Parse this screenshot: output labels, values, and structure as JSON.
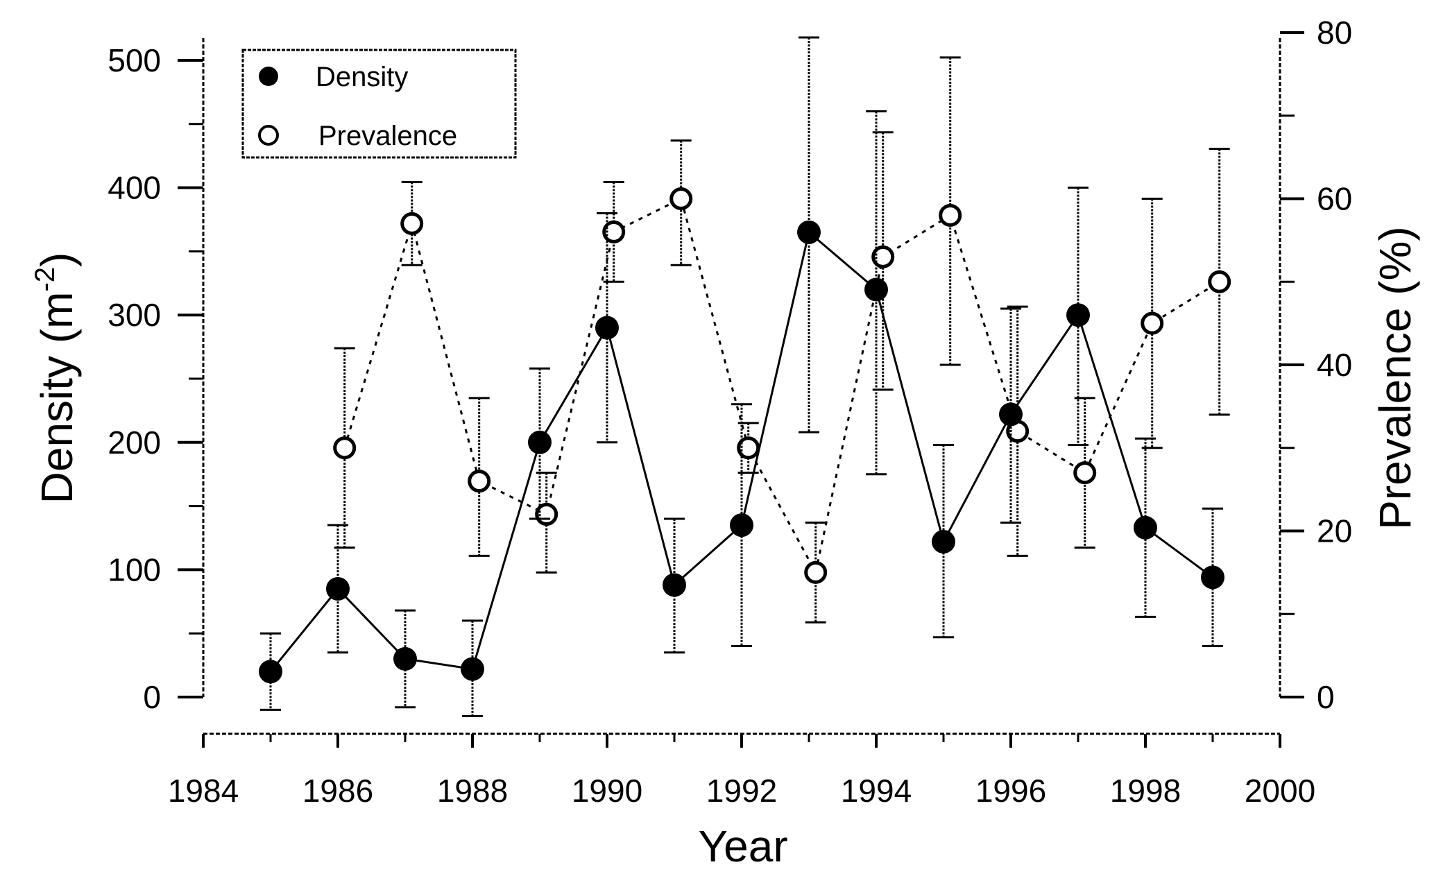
{
  "chart_data": {
    "type": "line",
    "x_axis": {
      "label": "Year",
      "range": [
        1984,
        2000
      ],
      "ticks": [
        1984,
        1986,
        1988,
        1990,
        1992,
        1994,
        1996,
        1998,
        2000
      ],
      "tick_labels": [
        "1984",
        "1986",
        "1988",
        "1990",
        "1992",
        "1994",
        "1996",
        "1998",
        "2000"
      ]
    },
    "y_axis_left": {
      "label_main": "Density (m",
      "label_sup": "-2",
      "label_end": ")",
      "range": [
        0,
        500
      ],
      "ticks": [
        0,
        100,
        200,
        300,
        400,
        500
      ],
      "tick_labels": [
        "0",
        "100",
        "200",
        "300",
        "400",
        "500"
      ]
    },
    "y_axis_right": {
      "label": "Prevalence (%)",
      "range": [
        0,
        80
      ],
      "ticks": [
        0,
        20,
        40,
        60,
        80
      ],
      "tick_labels": [
        "0",
        "20",
        "40",
        "60",
        "80"
      ]
    },
    "legend": {
      "position": "top-left",
      "entries": [
        "Density",
        "Prevalence"
      ]
    },
    "series": [
      {
        "name": "Density",
        "axis": "left",
        "marker": "filled-circle",
        "line": "solid",
        "points": [
          {
            "x": 1985,
            "y": 20,
            "lo": -10,
            "hi": 50
          },
          {
            "x": 1986,
            "y": 85,
            "lo": 35,
            "hi": 135
          },
          {
            "x": 1987,
            "y": 30,
            "lo": -8,
            "hi": 68
          },
          {
            "x": 1988,
            "y": 22,
            "lo": -15,
            "hi": 60
          },
          {
            "x": 1989,
            "y": 200,
            "lo": 140,
            "hi": 258
          },
          {
            "x": 1990,
            "y": 290,
            "lo": 200,
            "hi": 380
          },
          {
            "x": 1991,
            "y": 88,
            "lo": 35,
            "hi": 140
          },
          {
            "x": 1992,
            "y": 135,
            "lo": 40,
            "hi": 230
          },
          {
            "x": 1993,
            "y": 365,
            "lo": 208,
            "hi": 518
          },
          {
            "x": 1994,
            "y": 320,
            "lo": 175,
            "hi": 460
          },
          {
            "x": 1995,
            "y": 122,
            "lo": 47,
            "hi": 198
          },
          {
            "x": 1996,
            "y": 222,
            "lo": 137,
            "hi": 305
          },
          {
            "x": 1997,
            "y": 300,
            "lo": 198,
            "hi": 400
          },
          {
            "x": 1998,
            "y": 133,
            "lo": 63,
            "hi": 203
          },
          {
            "x": 1999,
            "y": 94,
            "lo": 40,
            "hi": 148
          }
        ]
      },
      {
        "name": "Prevalence",
        "axis": "right",
        "marker": "open-circle",
        "line": "dashed",
        "points": [
          {
            "x": 1986.1,
            "y": 30,
            "lo": 18,
            "hi": 42
          },
          {
            "x": 1987.1,
            "y": 57,
            "lo": 52,
            "hi": 62
          },
          {
            "x": 1988.1,
            "y": 26,
            "lo": 17,
            "hi": 36
          },
          {
            "x": 1989.1,
            "y": 22,
            "lo": 15,
            "hi": 27
          },
          {
            "x": 1990.1,
            "y": 56,
            "lo": 50,
            "hi": 62
          },
          {
            "x": 1991.1,
            "y": 60,
            "lo": 52,
            "hi": 67
          },
          {
            "x": 1992.1,
            "y": 30,
            "lo": 27,
            "hi": 33
          },
          {
            "x": 1993.1,
            "y": 15,
            "lo": 9,
            "hi": 21
          },
          {
            "x": 1994.1,
            "y": 53,
            "lo": 37,
            "hi": 68
          },
          {
            "x": 1995.1,
            "y": 58,
            "lo": 40,
            "hi": 77
          },
          {
            "x": 1996.1,
            "y": 32,
            "lo": 17,
            "hi": 47
          },
          {
            "x": 1997.1,
            "y": 27,
            "lo": 18,
            "hi": 36
          },
          {
            "x": 1998.1,
            "y": 45,
            "lo": 30,
            "hi": 60
          },
          {
            "x": 1999.1,
            "y": 50,
            "lo": 34,
            "hi": 66
          }
        ]
      }
    ]
  }
}
